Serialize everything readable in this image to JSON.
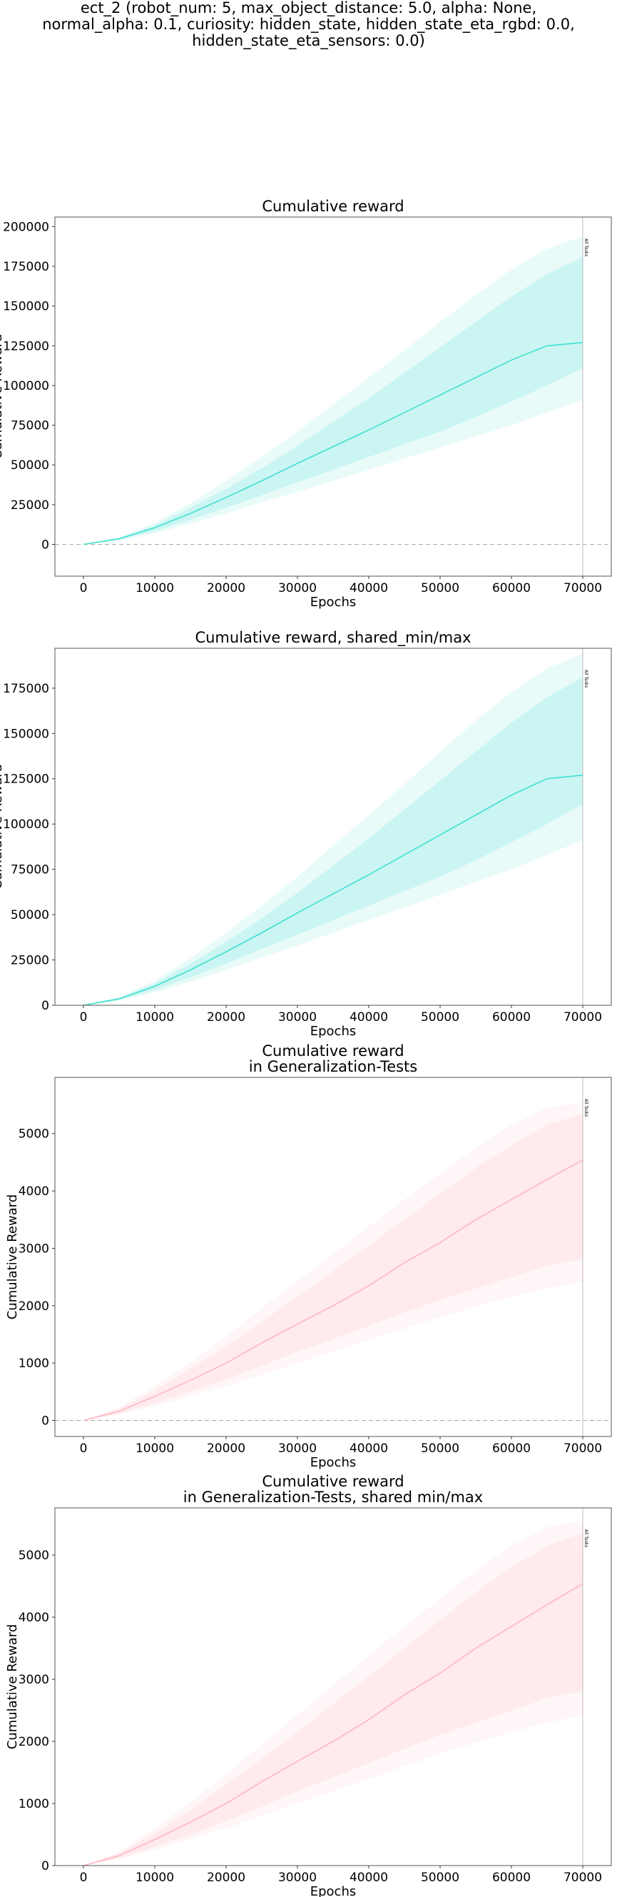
{
  "figure": {
    "title_lines": [
      "ect_2 (robot_num: 5, max_object_distance: 5.0, alpha: None,",
      "normal_alpha: 0.1, curiosity: hidden_state, hidden_state_eta_rgbd: 0.0,",
      "hidden_state_eta_sensors: 0.0)"
    ]
  },
  "chart_data": [
    {
      "type": "line",
      "title": [
        "Cumulative reward"
      ],
      "xlabel": "Epochs",
      "ylabel": "Cumulative Reward",
      "xlim": [
        -4000,
        74000
      ],
      "ylim": [
        -20000,
        206000
      ],
      "xticks": [
        0,
        10000,
        20000,
        30000,
        40000,
        50000,
        60000,
        70000
      ],
      "yticks": [
        0,
        25000,
        50000,
        75000,
        100000,
        125000,
        150000,
        175000,
        200000
      ],
      "hline": 0,
      "vline": {
        "x": 70000,
        "label": "All Tasks"
      },
      "color": "#40E0D0",
      "series": [
        {
          "x": [
            0,
            5000,
            10000,
            15000,
            20000,
            25000,
            30000,
            35000,
            40000,
            45000,
            50000,
            55000,
            60000,
            65000,
            70000
          ],
          "mean": [
            0,
            3500,
            10500,
            19500,
            29500,
            40000,
            51000,
            61500,
            72000,
            83000,
            94000,
            105000,
            116000,
            125000,
            127000
          ],
          "inner_low": [
            0,
            3000,
            8500,
            15500,
            23000,
            31000,
            39000,
            47000,
            55000,
            63000,
            71000,
            80000,
            90000,
            100000,
            111000
          ],
          "inner_high": [
            0,
            4000,
            12000,
            23000,
            35000,
            48000,
            62000,
            77000,
            92000,
            108000,
            124000,
            140000,
            156000,
            170000,
            181000
          ],
          "outer_low": [
            0,
            2500,
            7000,
            13000,
            19500,
            26500,
            33000,
            40000,
            47000,
            54000,
            61000,
            68000,
            75000,
            83000,
            91000
          ],
          "outer_high": [
            0,
            4500,
            13500,
            26000,
            40000,
            55000,
            71000,
            88000,
            105000,
            122000,
            140000,
            157000,
            173000,
            186000,
            194000
          ]
        }
      ]
    },
    {
      "type": "line",
      "title": [
        "Cumulative reward, shared_min/max"
      ],
      "xlabel": "Epochs",
      "ylabel": "Cumulative Reward",
      "xlim": [
        -4000,
        74000
      ],
      "ylim": [
        0,
        197000
      ],
      "xticks": [
        0,
        10000,
        20000,
        30000,
        40000,
        50000,
        60000,
        70000
      ],
      "yticks": [
        0,
        25000,
        50000,
        75000,
        100000,
        125000,
        150000,
        175000
      ],
      "hline": null,
      "vline": {
        "x": 70000,
        "label": "All Tasks"
      },
      "color": "#40E0D0",
      "series": [
        {
          "x": [
            0,
            5000,
            10000,
            15000,
            20000,
            25000,
            30000,
            35000,
            40000,
            45000,
            50000,
            55000,
            60000,
            65000,
            70000
          ],
          "mean": [
            0,
            3500,
            10500,
            19500,
            29500,
            40000,
            51000,
            61500,
            72000,
            83000,
            94000,
            105000,
            116000,
            125000,
            127000
          ],
          "inner_low": [
            0,
            3000,
            8500,
            15500,
            23000,
            31000,
            39000,
            47000,
            55000,
            63000,
            71000,
            80000,
            90000,
            100000,
            111000
          ],
          "inner_high": [
            0,
            4000,
            12000,
            23000,
            35000,
            48000,
            62000,
            77000,
            92000,
            108000,
            124000,
            140000,
            156000,
            170000,
            181000
          ],
          "outer_low": [
            0,
            2500,
            7000,
            13000,
            19500,
            26500,
            33000,
            40000,
            47000,
            54000,
            61000,
            68000,
            75000,
            83000,
            91000
          ],
          "outer_high": [
            0,
            4500,
            13500,
            26000,
            40000,
            55000,
            71000,
            88000,
            105000,
            122000,
            140000,
            157000,
            173000,
            186000,
            194000
          ]
        }
      ]
    },
    {
      "type": "line",
      "title": [
        "Cumulative reward",
        "in Generalization-Tests"
      ],
      "xlabel": "Epochs",
      "ylabel": "Cumulative Reward",
      "xlim": [
        -4000,
        74000
      ],
      "ylim": [
        -280,
        5980
      ],
      "xticks": [
        0,
        10000,
        20000,
        30000,
        40000,
        50000,
        60000,
        70000
      ],
      "yticks": [
        0,
        1000,
        2000,
        3000,
        4000,
        5000
      ],
      "hline": 0,
      "vline": {
        "x": 70000,
        "label": "All Tasks"
      },
      "color": "#FFB6C1",
      "series": [
        {
          "x": [
            0,
            5000,
            10000,
            15000,
            20000,
            25000,
            30000,
            35000,
            40000,
            45000,
            50000,
            55000,
            60000,
            65000,
            70000
          ],
          "mean": [
            0,
            160,
            420,
            700,
            1000,
            1350,
            1680,
            2000,
            2350,
            2750,
            3100,
            3500,
            3850,
            4200,
            4540
          ],
          "inner_low": [
            0,
            120,
            300,
            500,
            720,
            950,
            1200,
            1420,
            1650,
            1880,
            2100,
            2300,
            2500,
            2700,
            2820
          ],
          "inner_high": [
            0,
            200,
            520,
            900,
            1300,
            1720,
            2150,
            2600,
            3050,
            3500,
            3950,
            4400,
            4800,
            5150,
            5350
          ],
          "outer_low": [
            0,
            100,
            250,
            420,
            600,
            800,
            1000,
            1200,
            1400,
            1600,
            1800,
            1980,
            2150,
            2300,
            2420
          ],
          "outer_high": [
            0,
            230,
            600,
            1020,
            1470,
            1950,
            2430,
            2900,
            3380,
            3850,
            4300,
            4750,
            5150,
            5450,
            5550
          ]
        }
      ]
    },
    {
      "type": "line",
      "title": [
        "Cumulative reward",
        "in Generalization-Tests, shared min/max"
      ],
      "xlabel": "Epochs",
      "ylabel": "Cumulative Reward",
      "xlim": [
        -4000,
        74000
      ],
      "ylim": [
        0,
        5760
      ],
      "xticks": [
        0,
        10000,
        20000,
        30000,
        40000,
        50000,
        60000,
        70000
      ],
      "yticks": [
        0,
        1000,
        2000,
        3000,
        4000,
        5000
      ],
      "hline": null,
      "vline": {
        "x": 70000,
        "label": "All Tasks"
      },
      "color": "#FFB6C1",
      "series": [
        {
          "x": [
            0,
            5000,
            10000,
            15000,
            20000,
            25000,
            30000,
            35000,
            40000,
            45000,
            50000,
            55000,
            60000,
            65000,
            70000
          ],
          "mean": [
            0,
            160,
            420,
            700,
            1000,
            1350,
            1680,
            2000,
            2350,
            2750,
            3100,
            3500,
            3850,
            4200,
            4540
          ],
          "inner_low": [
            0,
            120,
            300,
            500,
            720,
            950,
            1200,
            1420,
            1650,
            1880,
            2100,
            2300,
            2500,
            2700,
            2820
          ],
          "inner_high": [
            0,
            200,
            520,
            900,
            1300,
            1720,
            2150,
            2600,
            3050,
            3500,
            3950,
            4400,
            4800,
            5150,
            5350
          ],
          "outer_low": [
            0,
            100,
            250,
            420,
            600,
            800,
            1000,
            1200,
            1400,
            1600,
            1800,
            1980,
            2150,
            2300,
            2420
          ],
          "outer_high": [
            0,
            230,
            600,
            1020,
            1470,
            1950,
            2430,
            2900,
            3380,
            3850,
            4300,
            4750,
            5150,
            5450,
            5550
          ]
        }
      ]
    }
  ]
}
